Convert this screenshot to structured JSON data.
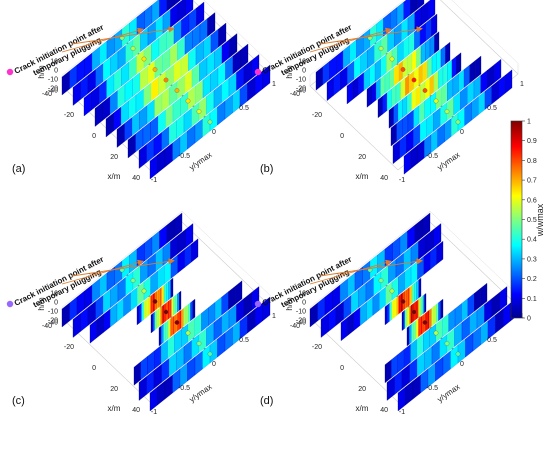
{
  "chart_data": {
    "type": "heatmap",
    "colorbar": {
      "label": "w/wmax",
      "ticks": [
        "0",
        "0.1",
        "0.2",
        "0.3",
        "0.4",
        "0.5",
        "0.6",
        "0.7",
        "0.8",
        "0.9",
        "1"
      ],
      "range": [
        0,
        1
      ],
      "colormap": [
        "#00008f",
        "#0000ff",
        "#0080ff",
        "#00ffff",
        "#80ff80",
        "#ffff00",
        "#ff8000",
        "#ff0000",
        "#800000"
      ]
    },
    "axes": {
      "hlabel": "h/m",
      "xlabel": "x/m",
      "ylabel": "y/ymax",
      "h_ticks": [
        "10",
        "0",
        "-10",
        "-20",
        "-40"
      ],
      "x_ticks": [
        "-40",
        "-20",
        "0",
        "20",
        "40"
      ],
      "y_ticks": [
        "-1",
        "-0.5",
        "0",
        "0.5",
        "1"
      ]
    },
    "annotation": {
      "line1": "Crack initiation point after",
      "line2": "temporary plugging"
    },
    "panels": [
      {
        "label": "(a)",
        "dot_color": "#ff33cc",
        "fracture_x": [
          -40,
          -30,
          -20,
          -10,
          0,
          10,
          20,
          30,
          40
        ],
        "fracture_halflength": [
          1,
          1,
          1,
          1,
          1,
          1,
          1,
          1,
          1
        ],
        "peak_w": [
          0.35,
          0.4,
          0.5,
          0.55,
          0.6,
          0.55,
          0.5,
          0.45,
          0.35
        ]
      },
      {
        "label": "(b)",
        "dot_color": "#ff33cc",
        "fracture_x": [
          -40,
          -30,
          -20,
          -10,
          0,
          10,
          20,
          30,
          40
        ],
        "fracture_halflength": [
          0.9,
          0.9,
          0.75,
          0.6,
          0.6,
          0.6,
          0.75,
          0.9,
          0.9
        ],
        "peak_w": [
          0.35,
          0.4,
          0.45,
          0.65,
          0.7,
          0.65,
          0.45,
          0.4,
          0.35
        ]
      },
      {
        "label": "(c)",
        "dot_color": "#9966ff",
        "fracture_x": [
          -40,
          -30,
          -20,
          -10,
          0,
          10,
          20,
          30,
          40
        ],
        "fracture_halflength": [
          1,
          1,
          0.9,
          0.3,
          0.25,
          0.3,
          0.9,
          1,
          1
        ],
        "peak_w": [
          0.3,
          0.35,
          0.4,
          0.85,
          0.9,
          0.85,
          0.4,
          0.35,
          0.3
        ]
      },
      {
        "label": "(d)",
        "dot_color": "#9966ff",
        "fracture_x": [
          -40,
          -30,
          -20,
          -10,
          0,
          10,
          20,
          30,
          40
        ],
        "fracture_halflength": [
          1,
          1,
          0.85,
          0.3,
          0.2,
          0.3,
          0.85,
          1,
          1
        ],
        "peak_w": [
          0.3,
          0.35,
          0.4,
          0.9,
          0.95,
          0.9,
          0.4,
          0.35,
          0.3
        ]
      }
    ]
  }
}
